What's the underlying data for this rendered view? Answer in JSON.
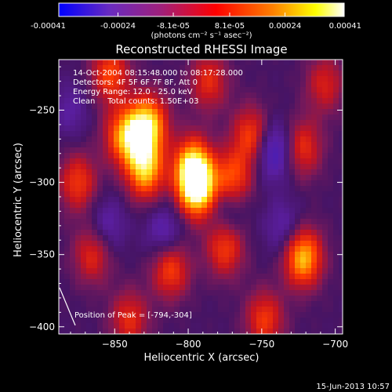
{
  "chart_data": {
    "type": "heatmap",
    "title": "Reconstructed RHESSI Image",
    "xlabel": "Heliocentric X (arcsec)",
    "ylabel": "Heliocentric Y (arcsec)",
    "xlim": [
      -888,
      -695
    ],
    "ylim": [
      -405,
      -215
    ],
    "x_ticks": [
      -850,
      -800,
      -750,
      -700
    ],
    "x_tick_labels": [
      "−850",
      "−800",
      "−750",
      "−700"
    ],
    "y_ticks": [
      -400,
      -350,
      -300,
      -250
    ],
    "y_tick_labels": [
      "−400",
      "−350",
      "−300",
      "−250"
    ],
    "colorbar": {
      "range": [
        -0.00041,
        0.00041
      ],
      "ticks": [
        -0.00041,
        -0.00024,
        -8.1e-05,
        8.1e-05,
        0.00024,
        0.00041
      ],
      "tick_labels": [
        "-0.00041",
        "-0.00024",
        "-8.1e-05",
        "8.1e-05",
        "0.00024",
        "0.00041"
      ],
      "units_label": "(photons cm⁻² s⁻¹ asec⁻²)",
      "colors": [
        "#0000ff",
        "#6a2bbf",
        "#a0207a",
        "#ff0000",
        "#ff8000",
        "#ffff00",
        "#ffffff"
      ]
    },
    "annotations": [
      "14-Oct-2004 08:15:48.000 to 08:17:28.000",
      "Detectors: 4F 5F 6F 7F 8F, Att 0",
      "Energy Range: 12.0 - 25.0 keV",
      "Clean     Total counts: 1.50E+03"
    ],
    "peak_label": "Position of Peak = [-794,-304]",
    "peak": [
      -794,
      -304
    ],
    "blobs": [
      {
        "x": -794,
        "y": -304,
        "amp": 1.0
      },
      {
        "x": -797,
        "y": -288,
        "amp": 0.72
      },
      {
        "x": -829,
        "y": -292,
        "amp": 0.72
      },
      {
        "x": -833,
        "y": -268,
        "amp": 0.6
      },
      {
        "x": -826,
        "y": -258,
        "amp": 0.55
      },
      {
        "x": -845,
        "y": -268,
        "amp": 0.5
      },
      {
        "x": -722,
        "y": -352,
        "amp": 0.78
      },
      {
        "x": -770,
        "y": -298,
        "amp": 0.55
      },
      {
        "x": -757,
        "y": -268,
        "amp": 0.5
      },
      {
        "x": -722,
        "y": -276,
        "amp": 0.42
      },
      {
        "x": -812,
        "y": -360,
        "amp": 0.5
      },
      {
        "x": -775,
        "y": -345,
        "amp": 0.48
      },
      {
        "x": -875,
        "y": -300,
        "amp": 0.45
      },
      {
        "x": -865,
        "y": -350,
        "amp": 0.4
      },
      {
        "x": -853,
        "y": -225,
        "amp": 0.5
      },
      {
        "x": -786,
        "y": -230,
        "amp": 0.4
      },
      {
        "x": -748,
        "y": -395,
        "amp": 0.45
      },
      {
        "x": -840,
        "y": -395,
        "amp": 0.4
      },
      {
        "x": -707,
        "y": -232,
        "amp": 0.35
      },
      {
        "x": -742,
        "y": -278,
        "amp": -0.45
      },
      {
        "x": -816,
        "y": -335,
        "amp": -0.3
      },
      {
        "x": -855,
        "y": -330,
        "amp": -0.25
      },
      {
        "x": -773,
        "y": -318,
        "amp": -0.25
      },
      {
        "x": -735,
        "y": -332,
        "amp": -0.25
      },
      {
        "x": -880,
        "y": -250,
        "amp": -0.2
      }
    ]
  },
  "footer": {
    "date": "15-Jun-2013 10:57"
  }
}
